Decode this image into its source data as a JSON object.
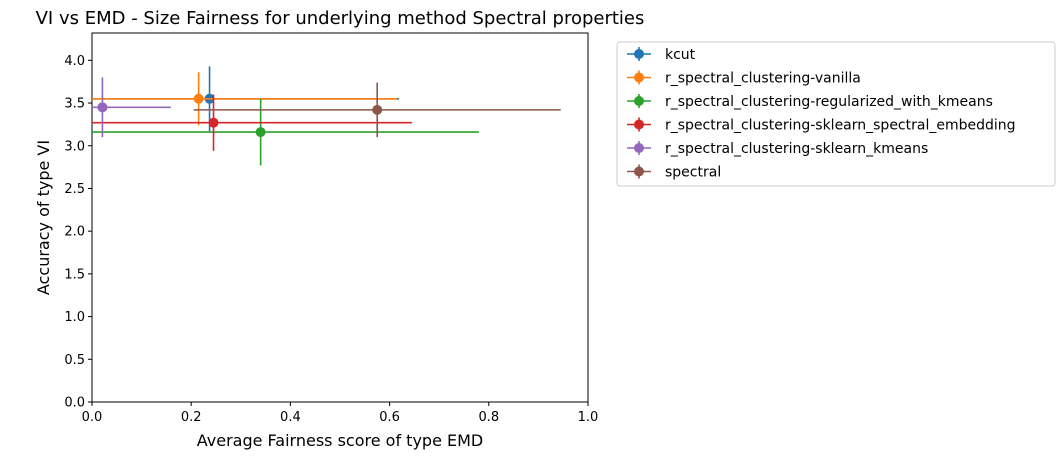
{
  "chart_data": {
    "type": "scatter",
    "title": "VI vs EMD - Size Fairness for underlying method Spectral properties",
    "xlabel": "Average Fairness score of type EMD",
    "ylabel": "Accuracy of type VI",
    "xlim": [
      0.0,
      1.0
    ],
    "ylim": [
      0.0,
      4.32
    ],
    "xticks": [
      "0.0",
      "0.2",
      "0.4",
      "0.6",
      "0.8",
      "1.0"
    ],
    "yticks": [
      "0.0",
      "0.5",
      "1.0",
      "1.5",
      "2.0",
      "2.5",
      "3.0",
      "3.5",
      "4.0"
    ],
    "grid": false,
    "legend_position": "outside-top-right",
    "series": [
      {
        "name": "kcut",
        "color": "#1f77b4",
        "x": 0.237,
        "y": 3.55,
        "xerr": 0.382,
        "yerr": 0.38
      },
      {
        "name": "r_spectral_clustering-vanilla",
        "color": "#ff7f0e",
        "x": 0.215,
        "y": 3.55,
        "xerr": 0.4,
        "yerr": 0.31
      },
      {
        "name": "r_spectral_clustering-regularized_with_kmeans",
        "color": "#2ca02c",
        "x": 0.34,
        "y": 3.16,
        "xerr": 0.44,
        "yerr": 0.39
      },
      {
        "name": "r_spectral_clustering-sklearn_spectral_embedding",
        "color": "#d62728",
        "x": 0.245,
        "y": 3.27,
        "xerr": 0.4,
        "yerr": 0.33
      },
      {
        "name": "r_spectral_clustering-sklearn_kmeans",
        "color": "#9467bd",
        "x": 0.021,
        "y": 3.45,
        "xerr": 0.138,
        "yerr": 0.35
      },
      {
        "name": "spectral",
        "color": "#8c564b",
        "x": 0.575,
        "y": 3.42,
        "xerr": 0.37,
        "yerr": 0.32
      }
    ]
  }
}
